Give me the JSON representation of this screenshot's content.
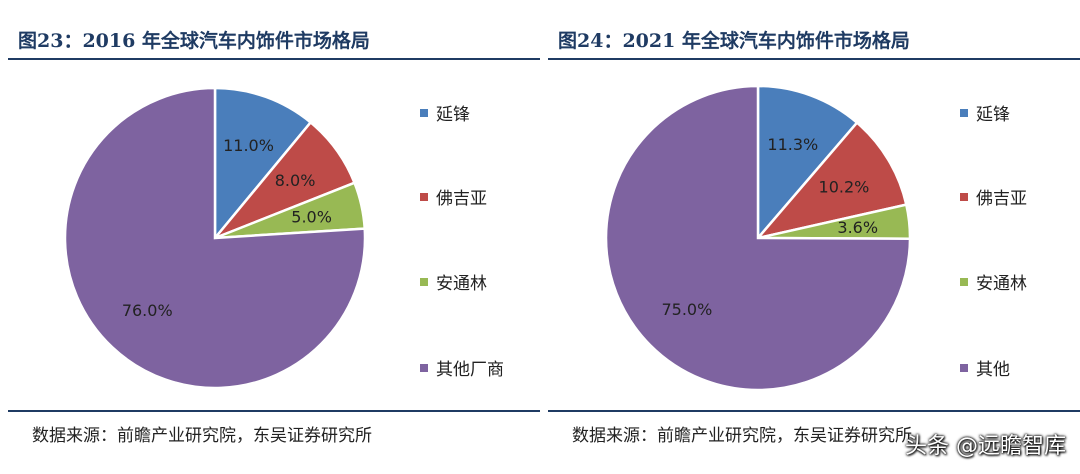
{
  "chart_data": [
    {
      "type": "pie",
      "title": "图23：2016 年全球汽车内饰件市场格局",
      "categories": [
        "延锋",
        "佛吉亚",
        "安通林",
        "其他厂商"
      ],
      "values": [
        11.0,
        8.0,
        5.0,
        76.0
      ],
      "value_labels": [
        "11.0%",
        "8.0%",
        "5.0%",
        "76.0%"
      ],
      "colors": [
        "#4a7ebb",
        "#be4b48",
        "#98b954",
        "#7e63a0"
      ],
      "source": "数据来源：前瞻产业研究院，东吴证券研究所",
      "legend_position": "right"
    },
    {
      "type": "pie",
      "title": "图24：2021 年全球汽车内饰件市场格局",
      "categories": [
        "延锋",
        "佛吉亚",
        "安通林",
        "其他"
      ],
      "values": [
        11.3,
        10.2,
        3.6,
        75.0
      ],
      "value_labels": [
        "11.3%",
        "10.2%",
        "3.6%",
        "75.0%"
      ],
      "colors": [
        "#4a7ebb",
        "#be4b48",
        "#98b954",
        "#7e63a0"
      ],
      "source": "数据来源：前瞻产业研究院，东吴证券研究所",
      "legend_position": "right"
    }
  ],
  "watermark": "头条 @远瞻智库"
}
